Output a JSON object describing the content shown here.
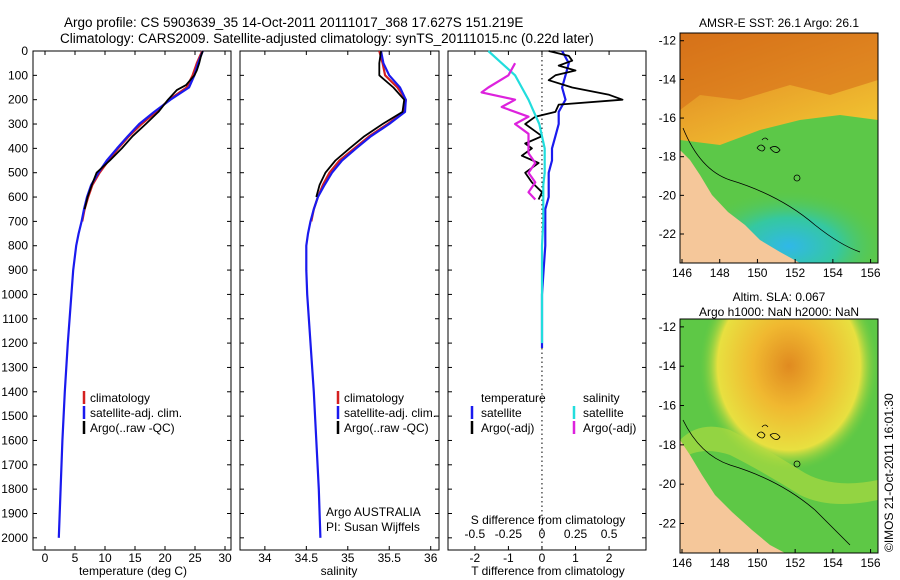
{
  "header": {
    "line1": "Argo profile: CS 5903639_35 14-Oct-2011 20111017_368 17.627S 151.219E",
    "line2": "Climatology: CARS2009. Satellite-adjusted climatology: synTS_20111015.nc (0.22d later)"
  },
  "colors": {
    "climatology": "#d42020",
    "satellite": "#1a1aee",
    "argo": "#000000",
    "sal_satellite": "#22dddd",
    "sal_argo": "#dd22dd",
    "land": "#f5c79a"
  },
  "depth_ticks": [
    "0",
    "100",
    "200",
    "300",
    "400",
    "500",
    "600",
    "700",
    "800",
    "900",
    "1000",
    "1100",
    "1200",
    "1300",
    "1400",
    "1500",
    "1600",
    "1700",
    "1800",
    "1900",
    "2000"
  ],
  "legend_labels": {
    "climatology": "climatology",
    "satellite": "satellite-adj. clim.",
    "argo": "Argo(..raw -QC)"
  },
  "chart_data": [
    {
      "type": "line",
      "title": "",
      "xlabel": "temperature (deg C)",
      "ylabel": "",
      "xlim": [
        -2,
        31
      ],
      "ylim": [
        2050,
        0
      ],
      "xticks": [
        "0",
        "5",
        "10",
        "15",
        "20",
        "25",
        "30"
      ],
      "xtick_values": [
        0,
        5,
        10,
        15,
        20,
        25,
        30
      ],
      "series": [
        {
          "name": "climatology",
          "color_key": "climatology",
          "depth": [
            0,
            50,
            100,
            150,
            200,
            250,
            300,
            350,
            400,
            450,
            500,
            550,
            600,
            650,
            700
          ],
          "values": [
            26.2,
            25.3,
            24.6,
            23.6,
            20.7,
            18.5,
            16.1,
            14.0,
            12.2,
            10.6,
            9.1,
            7.9,
            7.2,
            6.6,
            6.2
          ]
        },
        {
          "name": "satellite-adj. clim.",
          "color_key": "satellite",
          "depth": [
            0,
            50,
            100,
            150,
            200,
            250,
            300,
            350,
            400,
            450,
            500,
            550,
            600,
            650,
            700,
            750,
            800,
            900,
            1000,
            1200,
            1400,
            1600,
            1800,
            2000
          ],
          "values": [
            26.3,
            25.5,
            24.9,
            24.0,
            20.9,
            18.2,
            15.7,
            13.8,
            12.0,
            10.3,
            8.9,
            7.7,
            7.0,
            6.5,
            6.1,
            5.6,
            5.2,
            4.7,
            4.4,
            3.8,
            3.3,
            2.9,
            2.6,
            2.3
          ]
        },
        {
          "name": "Argo(..raw -QC)",
          "color_key": "argo",
          "depth": [
            0,
            20,
            50,
            80,
            100,
            140,
            160,
            200,
            250,
            300,
            350,
            400,
            450,
            500,
            550,
            600,
            650
          ],
          "values": [
            26.3,
            26.0,
            25.7,
            25.3,
            24.9,
            23.5,
            22.0,
            20.5,
            18.9,
            16.8,
            14.6,
            12.8,
            10.8,
            8.6,
            7.8,
            7.1,
            6.6
          ]
        }
      ],
      "legend": {
        "position": "lower-middle",
        "entries": [
          "climatology",
          "satellite-adj. clim.",
          "Argo(..raw -QC)"
        ]
      }
    },
    {
      "type": "line",
      "title": "",
      "xlabel": "salinity",
      "ylabel": "",
      "xlim": [
        33.7,
        36.1
      ],
      "ylim": [
        2050,
        0
      ],
      "xticks": [
        "34",
        "34.5",
        "35",
        "35.5",
        "36"
      ],
      "xtick_values": [
        34,
        34.5,
        35,
        35.5,
        36
      ],
      "series": [
        {
          "name": "climatology",
          "color_key": "climatology",
          "depth": [
            0,
            50,
            100,
            150,
            200,
            250,
            300,
            350,
            400,
            450,
            500,
            550,
            600,
            650,
            700
          ],
          "values": [
            35.38,
            35.42,
            35.45,
            35.6,
            35.7,
            35.68,
            35.48,
            35.26,
            35.08,
            34.9,
            34.78,
            34.7,
            34.64,
            34.59,
            34.56
          ]
        },
        {
          "name": "satellite-adj. clim.",
          "color_key": "satellite",
          "depth": [
            0,
            50,
            100,
            150,
            200,
            250,
            300,
            350,
            400,
            450,
            500,
            550,
            600,
            650,
            700,
            750,
            800,
            900,
            1000,
            1200,
            1400,
            1600,
            1800,
            2000
          ],
          "values": [
            35.4,
            35.43,
            35.5,
            35.63,
            35.7,
            35.69,
            35.5,
            35.28,
            35.1,
            34.93,
            34.81,
            34.72,
            34.64,
            34.59,
            34.55,
            34.52,
            34.5,
            34.5,
            34.51,
            34.55,
            34.59,
            34.62,
            34.65,
            34.67
          ]
        },
        {
          "name": "Argo(..raw -QC)",
          "color_key": "argo",
          "depth": [
            0,
            50,
            100,
            150,
            200,
            250,
            300,
            350,
            400,
            450,
            500,
            550,
            600
          ],
          "values": [
            35.4,
            35.38,
            35.38,
            35.55,
            35.68,
            35.66,
            35.42,
            35.2,
            35.02,
            34.85,
            34.73,
            34.66,
            34.62
          ]
        }
      ],
      "legend": {
        "position": "lower-right",
        "entries": [
          "climatology",
          "satellite-adj. clim.",
          "Argo(..raw -QC)"
        ]
      },
      "annotations": [
        "Argo AUSTRALIA",
        "PI: Susan Wijffels"
      ]
    },
    {
      "type": "line",
      "title": "",
      "xlabel": "T difference from climatology",
      "xlabel_top": "S difference from climatology",
      "xlim": [
        -2.8,
        3.1
      ],
      "ylim": [
        2050,
        0
      ],
      "xticks": [
        "-2",
        "-1",
        "0",
        "1",
        "2"
      ],
      "xtick_values": [
        -2,
        -1,
        0,
        1,
        2
      ],
      "xticks_top": [
        "-0.5",
        "-0.25",
        "0",
        "0.25",
        "0.5"
      ],
      "xtick_top_values": [
        -0.5,
        -0.25,
        0,
        0.25,
        0.5
      ],
      "series": [
        {
          "name": "temperature satellite",
          "color_key": "satellite",
          "depth": [
            0,
            50,
            100,
            150,
            200,
            250,
            300,
            350,
            400,
            450,
            500,
            550,
            600,
            650,
            700,
            800,
            900,
            1000,
            1100,
            1200,
            1220
          ],
          "values": [
            0.6,
            0.8,
            0.7,
            0.6,
            0.7,
            0.5,
            0.5,
            0.4,
            0.3,
            0.3,
            0.2,
            0.2,
            0.2,
            0.1,
            0.1,
            0.1,
            0.05,
            0.0,
            0.0,
            0.0,
            0.0
          ]
        },
        {
          "name": "temperature Argo(-adj)",
          "color_key": "argo",
          "depth": [
            0,
            20,
            40,
            60,
            80,
            100,
            120,
            150,
            180,
            200,
            220,
            250,
            270,
            300,
            330,
            350,
            380,
            400,
            430,
            460,
            500,
            540,
            580,
            610
          ],
          "values": [
            0.2,
            0.8,
            0.9,
            0.5,
            1.0,
            0.4,
            0.2,
            0.9,
            2.0,
            2.4,
            0.5,
            0.4,
            -0.2,
            -0.5,
            -0.2,
            0.0,
            -0.5,
            -0.3,
            -0.6,
            -0.1,
            -0.5,
            -0.3,
            0.0,
            -0.1
          ]
        },
        {
          "name": "salinity satellite",
          "color_key": "sal_satellite",
          "depth": [
            0,
            50,
            100,
            150,
            200,
            250,
            300,
            350,
            400,
            450,
            500,
            550,
            600,
            700,
            800,
            900,
            1000,
            1100,
            1200
          ],
          "values": [
            -0.4,
            -0.3,
            -0.2,
            -0.15,
            -0.1,
            -0.06,
            -0.02,
            0.0,
            0.02,
            0.02,
            0.02,
            0.01,
            0.01,
            0.01,
            0.0,
            0.0,
            0.0,
            0.0,
            0.0
          ]
        },
        {
          "name": "salinity Argo(-adj)",
          "color_key": "sal_argo",
          "depth": [
            50,
            100,
            150,
            170,
            200,
            230,
            270,
            300,
            340,
            380,
            420,
            460,
            500,
            540,
            580,
            610
          ],
          "values": [
            -0.2,
            -0.25,
            -0.4,
            -0.45,
            -0.2,
            -0.3,
            -0.1,
            -0.2,
            -0.1,
            -0.1,
            -0.1,
            -0.05,
            -0.1,
            -0.05,
            -0.1,
            -0.05
          ]
        }
      ],
      "legend_groups": {
        "temperature": "temperature",
        "salinity": "salinity",
        "satellite": "satellite",
        "argo": "Argo(-adj)"
      }
    }
  ],
  "maps": {
    "top_title": "AMSR-E SST: 26.1  Argo: 26.1",
    "bottom_title_1": "Altim. SLA: 0.067",
    "bottom_title_2": "Argo h1000: NaN h2000: NaN",
    "lon_ticks": [
      "146",
      "148",
      "150",
      "152",
      "154",
      "156"
    ],
    "lat_ticks": [
      "-12",
      "-14",
      "-16",
      "-18",
      "-20",
      "-22"
    ],
    "credit": "©IMOS 21-Oct-2011 16:01:30"
  }
}
